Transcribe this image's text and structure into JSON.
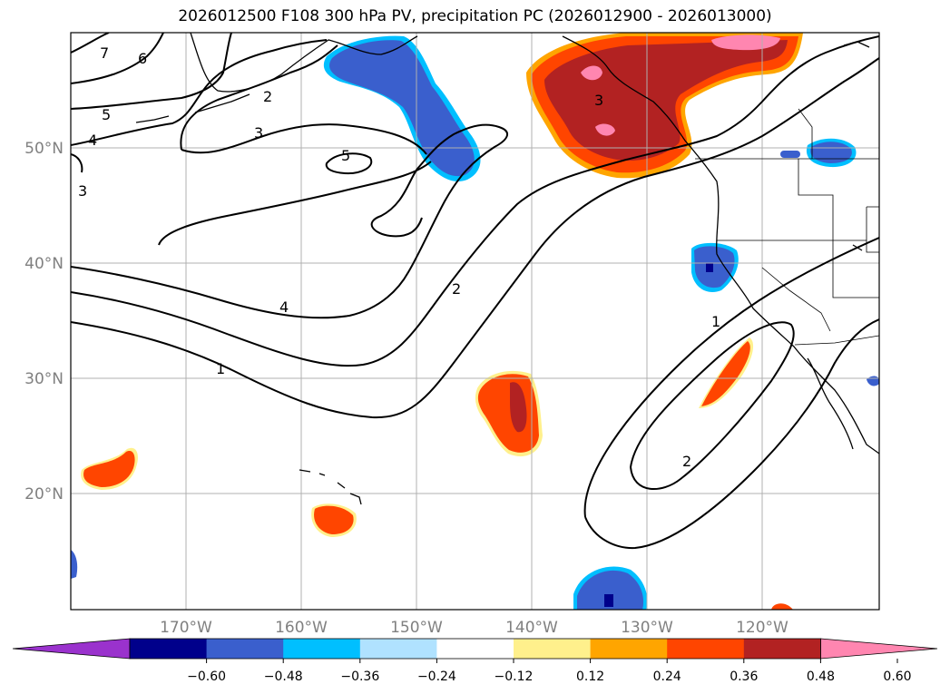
{
  "title": "2026012500 F108 300 hPa PV, precipitation PC (2026012900 - 2026013000)",
  "lat_labels": [
    "50°N",
    "40°N",
    "30°N",
    "20°N"
  ],
  "lon_labels": [
    "170°W",
    "160°W",
    "150°W",
    "140°W",
    "130°W",
    "120°W"
  ],
  "colorbar": {
    "colors": [
      "#9a32cd",
      "#00008b",
      "#3a5fcd",
      "#00bfff",
      "#b0e2ff",
      "#ffffff",
      "#fff08c",
      "#ffa500",
      "#ff4500",
      "#b22222",
      "#ff86b0"
    ],
    "labels": [
      "−0.60",
      "−0.48",
      "−0.36",
      "−0.24",
      "−0.12",
      "0.12",
      "0.24",
      "0.36",
      "0.48",
      "0.60"
    ]
  },
  "contour_labels": [
    "7",
    "6",
    "5",
    "4",
    "3",
    "2",
    "3",
    "5",
    "4",
    "2",
    "1",
    "3",
    "1",
    "2"
  ]
}
